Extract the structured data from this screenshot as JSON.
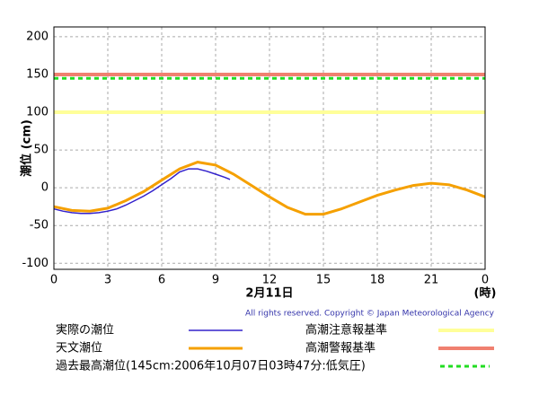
{
  "chart_data": {
    "type": "line",
    "y_label": "潮位 (cm)",
    "x_label": "2月11日",
    "x_unit": "(時)",
    "copyright": "All rights reserved. Copyright © Japan Meteorological Agency",
    "xlim": [
      0,
      24
    ],
    "xticks": [
      0,
      3,
      6,
      9,
      12,
      15,
      18,
      21,
      {
        "value": 24,
        "label": "0"
      }
    ],
    "ylim": [
      -108,
      213
    ],
    "yticks": [
      -100,
      -50,
      0,
      50,
      100,
      150,
      200
    ],
    "grid": true,
    "series": [
      {
        "name": "実際の潮位",
        "color": "#3322cc",
        "x": [
          0,
          0.5,
          1,
          1.5,
          2,
          2.5,
          3,
          3.5,
          4,
          4.5,
          5,
          5.5,
          6,
          6.5,
          7,
          7.5,
          8,
          8.5,
          9,
          9.5,
          9.8
        ],
        "values": [
          -28,
          -31,
          -33,
          -34,
          -34,
          -33,
          -31,
          -28,
          -23,
          -17,
          -11,
          -4,
          4,
          12,
          21,
          25,
          25,
          22,
          18,
          14,
          11
        ]
      },
      {
        "name": "天文潮位",
        "color": "#f5a000",
        "x": [
          0,
          1,
          2,
          3,
          4,
          5,
          6,
          7,
          8,
          9,
          10,
          11,
          12,
          13,
          14,
          15,
          16,
          17,
          18,
          19,
          20,
          21,
          22,
          23,
          24
        ],
        "values": [
          -25,
          -30,
          -31,
          -27,
          -17,
          -5,
          10,
          25,
          34,
          30,
          18,
          3,
          -12,
          -26,
          -35,
          -35,
          -28,
          -19,
          -10,
          -3,
          3,
          6,
          4,
          -3,
          -12
        ]
      }
    ],
    "reference_lines": [
      {
        "name": "高潮注意報基準",
        "value": 100,
        "color": "#ffff99",
        "style": "solid"
      },
      {
        "name": "高潮警報基準",
        "value": 150,
        "color": "#f08070",
        "style": "solid"
      },
      {
        "name": "過去最高潮位(145cm:2006年10月07日03時47分:低気圧)",
        "value": 145,
        "color": "#22dd22",
        "style": "dashed"
      }
    ]
  }
}
